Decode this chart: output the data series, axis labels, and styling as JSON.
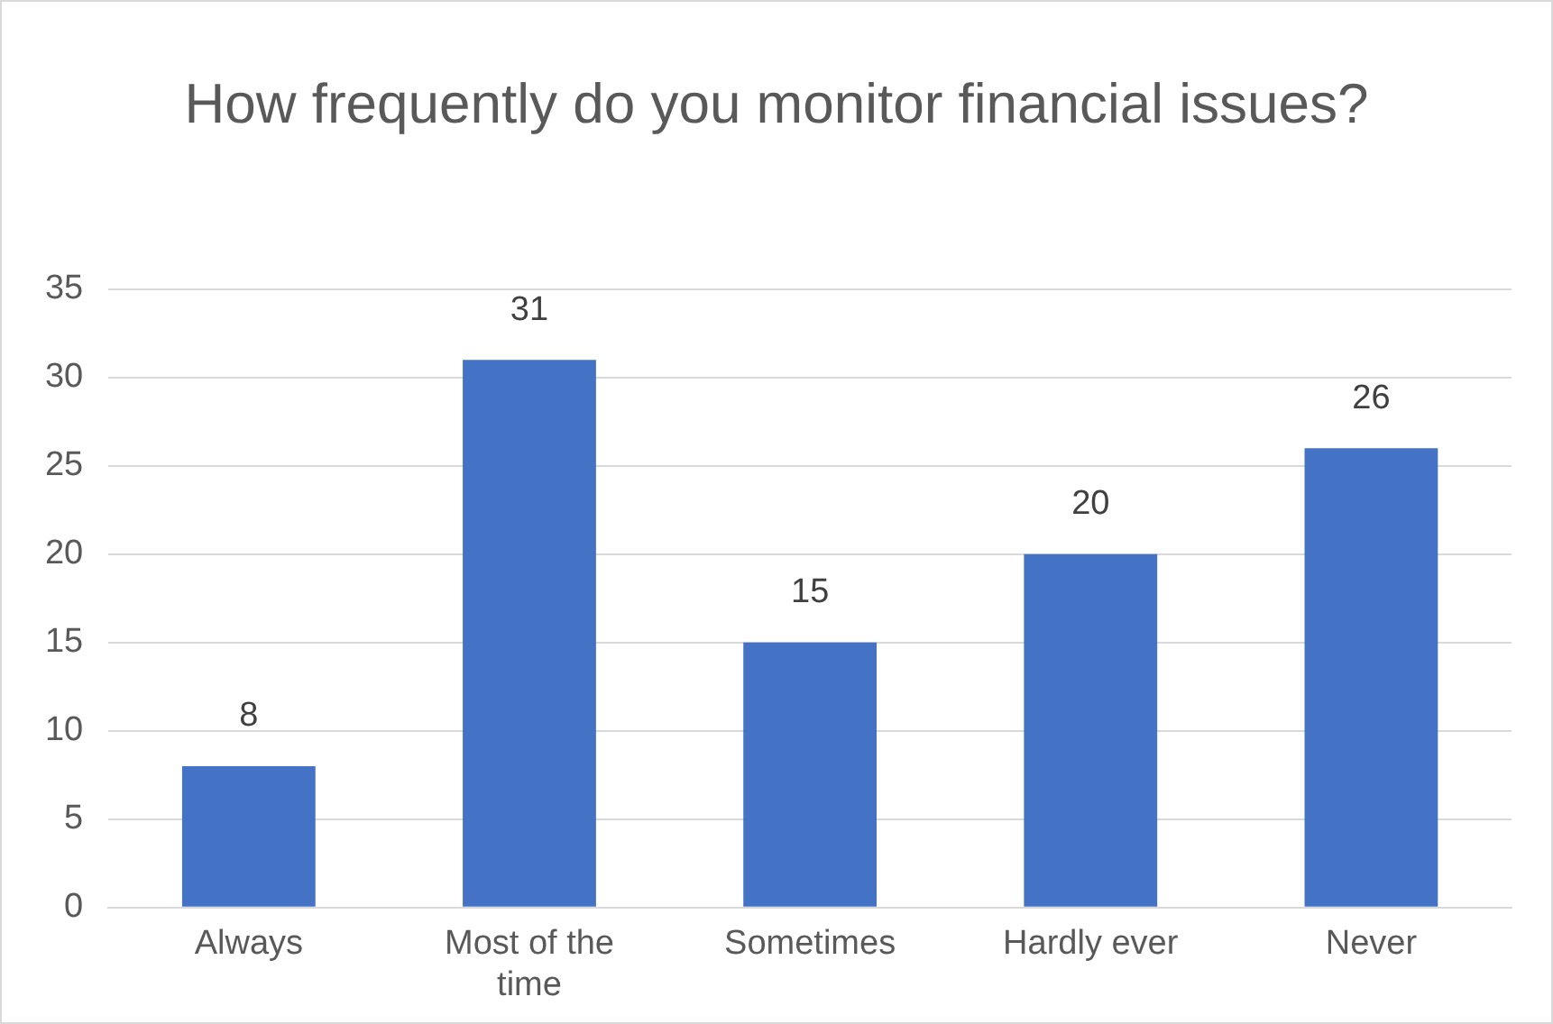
{
  "chart_data": {
    "type": "bar",
    "title": "How frequently do you monitor financial issues?",
    "categories": [
      "Always",
      "Most of the time",
      "Sometimes",
      "Hardly ever",
      "Never"
    ],
    "values": [
      8,
      31,
      15,
      20,
      26
    ],
    "color": "#4472c4",
    "ylim": [
      0,
      35
    ],
    "yticks": [
      0,
      5,
      10,
      15,
      20,
      25,
      30,
      35
    ],
    "grid": "y",
    "data_labels": true
  }
}
